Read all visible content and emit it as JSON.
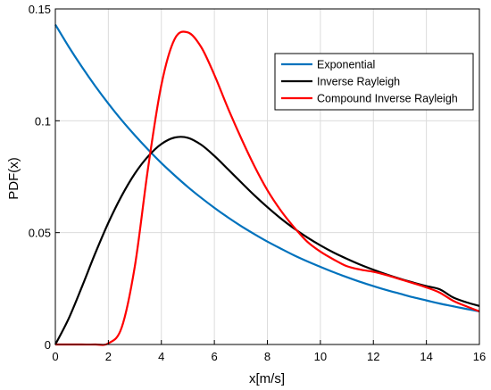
{
  "chart_data": {
    "type": "line",
    "title": "",
    "xlabel": "x[m/s]",
    "ylabel": "PDF(x)",
    "xlim": [
      0,
      16
    ],
    "ylim": [
      0,
      0.15
    ],
    "grid": true,
    "legend_position": "top-right",
    "x_ticks": [
      "0",
      "2",
      "4",
      "6",
      "8",
      "10",
      "12",
      "14",
      "16"
    ],
    "y_ticks": [
      "0",
      "0.05",
      "0.1",
      "0.15"
    ],
    "x": [
      0,
      0.5,
      1,
      1.5,
      2,
      2.5,
      3,
      3.5,
      4,
      4.5,
      5,
      5.5,
      6,
      6.5,
      7,
      7.5,
      8,
      8.5,
      9,
      9.5,
      10,
      10.5,
      11,
      11.5,
      12,
      12.5,
      13,
      13.5,
      14,
      14.5,
      15,
      15.5,
      16
    ],
    "series": [
      {
        "name": "Exponential",
        "color": "#0072BD",
        "values": [
          0.143,
          0.1332,
          0.1241,
          0.1156,
          0.1077,
          0.1003,
          0.0935,
          0.0871,
          0.0811,
          0.0756,
          0.0704,
          0.0656,
          0.0611,
          0.0569,
          0.053,
          0.0494,
          0.046,
          0.0429,
          0.0399,
          0.0372,
          0.0347,
          0.0323,
          0.0301,
          0.028,
          0.0261,
          0.0243,
          0.0227,
          0.0211,
          0.0197,
          0.0183,
          0.0171,
          0.0159,
          0.0148
        ]
      },
      {
        "name": "Inverse Rayleigh",
        "color": "#000000",
        "values": [
          0,
          0.0115,
          0.0257,
          0.0406,
          0.0544,
          0.0664,
          0.0764,
          0.0841,
          0.0896,
          0.0925,
          0.0924,
          0.0893,
          0.0843,
          0.0785,
          0.0726,
          0.0668,
          0.0614,
          0.0564,
          0.0519,
          0.0479,
          0.0443,
          0.0411,
          0.0383,
          0.0357,
          0.0334,
          0.0313,
          0.0294,
          0.0277,
          0.0261,
          0.0247,
          0.0211,
          0.0189,
          0.0172
        ]
      },
      {
        "name": "Compound Inverse Rayleigh",
        "color": "#FF0000",
        "values": [
          0,
          0,
          0,
          0,
          0.0005,
          0.0075,
          0.035,
          0.079,
          0.116,
          0.1365,
          0.1395,
          0.133,
          0.1205,
          0.106,
          0.0925,
          0.08,
          0.069,
          0.06,
          0.0525,
          0.046,
          0.0415,
          0.038,
          0.035,
          0.0335,
          0.0325,
          0.031,
          0.0292,
          0.0274,
          0.0255,
          0.0232,
          0.0196,
          0.0171,
          0.0148
        ]
      }
    ]
  }
}
